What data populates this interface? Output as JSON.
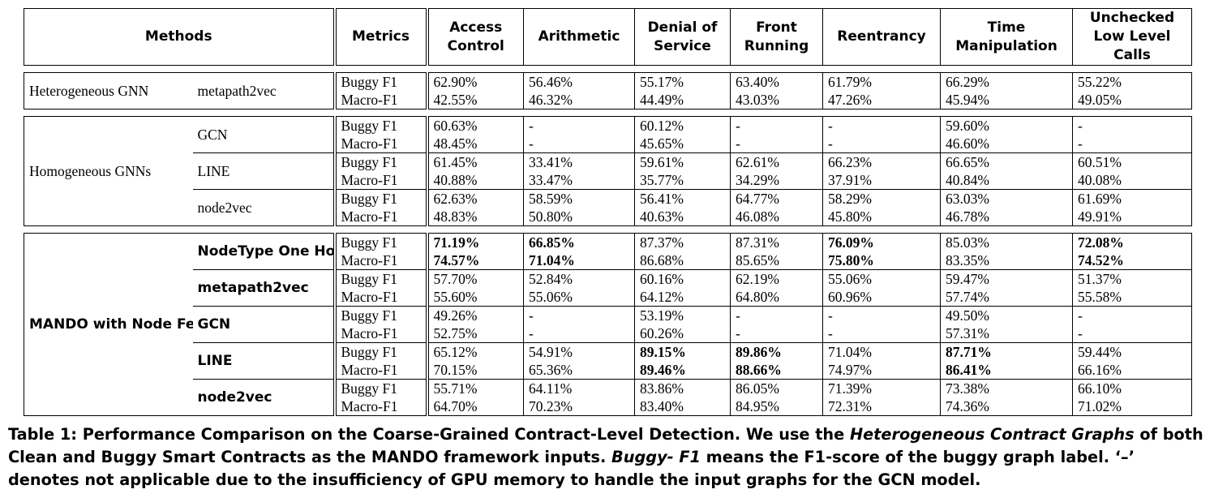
{
  "headers": {
    "methods": "Methods",
    "metrics": "Metrics",
    "columns": [
      "Access Control",
      "Arithmetic",
      "Denial of Service",
      "Front Running",
      "Reentrancy",
      "Time Manipulation",
      "Unchecked Low Level Calls"
    ]
  },
  "groups": [
    {
      "label": "Heterogeneous GNN",
      "subgroups": [
        {
          "name": "metapath2vec",
          "rows": [
            {
              "metric": "Buggy F1",
              "values": [
                "62.90%",
                "56.46%",
                "55.17%",
                "63.40%",
                "61.79%",
                "66.29%",
                "55.22%"
              ],
              "bold": [
                false,
                false,
                false,
                false,
                false,
                false,
                false
              ]
            },
            {
              "metric": "Macro-F1",
              "values": [
                "42.55%",
                "46.32%",
                "44.49%",
                "43.03%",
                "47.26%",
                "45.94%",
                "49.05%"
              ],
              "bold": [
                false,
                false,
                false,
                false,
                false,
                false,
                false
              ]
            }
          ]
        }
      ]
    },
    {
      "label": "Homogeneous GNNs",
      "subgroups": [
        {
          "name": "GCN",
          "rows": [
            {
              "metric": "Buggy F1",
              "values": [
                "60.63%",
                "-",
                "60.12%",
                "-",
                "-",
                "59.60%",
                "-"
              ],
              "bold": [
                false,
                false,
                false,
                false,
                false,
                false,
                false
              ]
            },
            {
              "metric": "Macro-F1",
              "values": [
                "48.45%",
                "-",
                "45.65%",
                "-",
                "-",
                "46.60%",
                "-"
              ],
              "bold": [
                false,
                false,
                false,
                false,
                false,
                false,
                false
              ]
            }
          ]
        },
        {
          "name": "LINE",
          "rows": [
            {
              "metric": "Buggy F1",
              "values": [
                "61.45%",
                "33.41%",
                "59.61%",
                "62.61%",
                "66.23%",
                "66.65%",
                "60.51%"
              ],
              "bold": [
                false,
                false,
                false,
                false,
                false,
                false,
                false
              ]
            },
            {
              "metric": "Macro-F1",
              "values": [
                "40.88%",
                "33.47%",
                "35.77%",
                "34.29%",
                "37.91%",
                "40.84%",
                "40.08%"
              ],
              "bold": [
                false,
                false,
                false,
                false,
                false,
                false,
                false
              ]
            }
          ]
        },
        {
          "name": "node2vec",
          "rows": [
            {
              "metric": "Buggy F1",
              "values": [
                "62.63%",
                "58.59%",
                "56.41%",
                "64.77%",
                "58.29%",
                "63.03%",
                "61.69%"
              ],
              "bold": [
                false,
                false,
                false,
                false,
                false,
                false,
                false
              ]
            },
            {
              "metric": "Macro-F1",
              "values": [
                "48.83%",
                "50.80%",
                "40.63%",
                "46.08%",
                "45.80%",
                "46.78%",
                "49.91%"
              ],
              "bold": [
                false,
                false,
                false,
                false,
                false,
                false,
                false
              ]
            }
          ]
        }
      ]
    },
    {
      "label": "MANDO with Node Features Generated by",
      "subgroups": [
        {
          "name": "NodeType One Hot Vectors",
          "rows": [
            {
              "metric": "Buggy F1",
              "values": [
                "71.19%",
                "66.85%",
                "87.37%",
                "87.31%",
                "76.09%",
                "85.03%",
                "72.08%"
              ],
              "bold": [
                true,
                true,
                false,
                false,
                true,
                false,
                true
              ]
            },
            {
              "metric": "Macro-F1",
              "values": [
                "74.57%",
                "71.04%",
                "86.68%",
                "85.65%",
                "75.80%",
                "83.35%",
                "74.52%"
              ],
              "bold": [
                true,
                true,
                false,
                false,
                true,
                false,
                true
              ]
            }
          ]
        },
        {
          "name": "metapath2vec",
          "rows": [
            {
              "metric": "Buggy F1",
              "values": [
                "57.70%",
                "52.84%",
                "60.16%",
                "62.19%",
                "55.06%",
                "59.47%",
                "51.37%"
              ],
              "bold": [
                false,
                false,
                false,
                false,
                false,
                false,
                false
              ]
            },
            {
              "metric": "Macro-F1",
              "values": [
                "55.60%",
                "55.06%",
                "64.12%",
                "64.80%",
                "60.96%",
                "57.74%",
                "55.58%"
              ],
              "bold": [
                false,
                false,
                false,
                false,
                false,
                false,
                false
              ]
            }
          ]
        },
        {
          "name": "GCN",
          "rows": [
            {
              "metric": "Buggy F1",
              "values": [
                "49.26%",
                "-",
                "53.19%",
                "-",
                "-",
                "49.50%",
                "-"
              ],
              "bold": [
                false,
                false,
                false,
                false,
                false,
                false,
                false
              ]
            },
            {
              "metric": "Macro-F1",
              "values": [
                "52.75%",
                "-",
                "60.26%",
                "-",
                "-",
                "57.31%",
                "-"
              ],
              "bold": [
                false,
                false,
                false,
                false,
                false,
                false,
                false
              ]
            }
          ]
        },
        {
          "name": "LINE",
          "rows": [
            {
              "metric": "Buggy F1",
              "values": [
                "65.12%",
                "54.91%",
                "89.15%",
                "89.86%",
                "71.04%",
                "87.71%",
                "59.44%"
              ],
              "bold": [
                false,
                false,
                true,
                true,
                false,
                true,
                false
              ]
            },
            {
              "metric": "Macro-F1",
              "values": [
                "70.15%",
                "65.36%",
                "89.46%",
                "88.66%",
                "74.97%",
                "86.41%",
                "66.16%"
              ],
              "bold": [
                false,
                false,
                true,
                true,
                false,
                true,
                false
              ]
            }
          ]
        },
        {
          "name": "node2vec",
          "rows": [
            {
              "metric": "Buggy F1",
              "values": [
                "55.71%",
                "64.11%",
                "83.86%",
                "86.05%",
                "71.39%",
                "73.38%",
                "66.10%"
              ],
              "bold": [
                false,
                false,
                false,
                false,
                false,
                false,
                false
              ]
            },
            {
              "metric": "Macro-F1",
              "values": [
                "64.70%",
                "70.23%",
                "83.40%",
                "84.95%",
                "72.31%",
                "74.36%",
                "71.02%"
              ],
              "bold": [
                false,
                false,
                false,
                false,
                false,
                false,
                false
              ]
            }
          ]
        }
      ]
    }
  ],
  "caption": {
    "lead": "Table 1: Performance Comparison on the Coarse-Grained Contract-Level Detection. We use the ",
    "em1": "Heterogeneous Contract Graphs",
    "mid1": " of both Clean and Buggy Smart Contracts as the MANDO framework inputs. ",
    "em2": "Buggy- F1",
    "tail": " means the F1-score of the buggy graph label. ‘–’ denotes not applicable due to the insufficiency of GPU memory to handle the input graphs for the GCN model."
  }
}
